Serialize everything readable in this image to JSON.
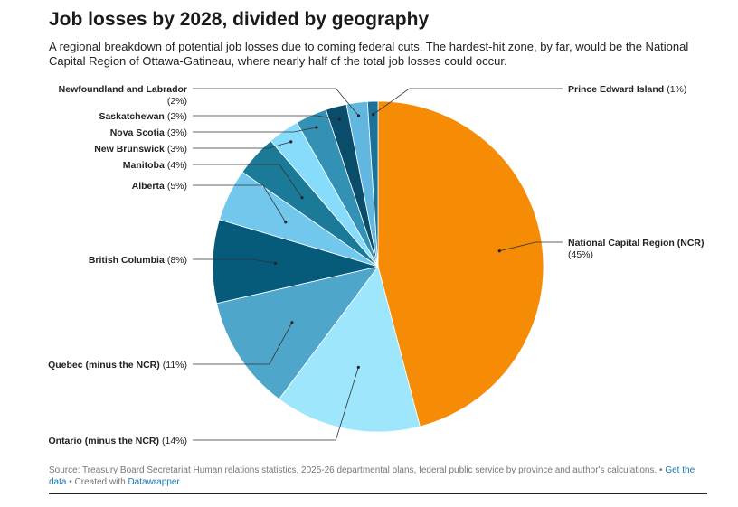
{
  "title": "Job losses by 2028, divided by geography",
  "subtitle": "A regional breakdown of potential job losses due to coming federal cuts. The hardest-hit zone, by far, would be the National Capital Region of Ottawa-Gatineau, where nearly half of the total job losses could occur.",
  "footer": {
    "source_text": "Source: Treasury Board Secretariat Human relations statistics, 2025-26 departmental plans, federal public service by province and author's calculations.",
    "separator": "•",
    "get_data_label": "Get the data",
    "created_with_text": "• Created with",
    "datawrapper_label": "Datawrapper"
  },
  "chart_data": {
    "type": "pie",
    "title": "Job losses by 2028, divided by geography",
    "slices": [
      {
        "label": "National Capital Region (NCR)",
        "pct_text": "(45%)",
        "value": 45,
        "color": "#f68b06"
      },
      {
        "label": "Ontario (minus the NCR)",
        "pct_text": "(14%)",
        "value": 14,
        "color": "#9ee6fc"
      },
      {
        "label": "Quebec (minus the NCR)",
        "pct_text": "(11%)",
        "value": 11,
        "color": "#4ea6cb"
      },
      {
        "label": "British Columbia",
        "pct_text": "(8%)",
        "value": 8,
        "color": "#065b7b"
      },
      {
        "label": "Alberta",
        "pct_text": "(5%)",
        "value": 5,
        "color": "#72c7ec"
      },
      {
        "label": "Manitoba",
        "pct_text": "(4%)",
        "value": 4,
        "color": "#1c7a99"
      },
      {
        "label": "New Brunswick",
        "pct_text": "(3%)",
        "value": 3,
        "color": "#88dcfb"
      },
      {
        "label": "Nova Scotia",
        "pct_text": "(3%)",
        "value": 3,
        "color": "#3491b6"
      },
      {
        "label": "Saskatchewan",
        "pct_text": "(2%)",
        "value": 2,
        "color": "#0a4d6b"
      },
      {
        "label": "Newfoundland and Labrador",
        "pct_text": "(2%)",
        "value": 2,
        "color": "#62b7e0"
      },
      {
        "label": "Prince Edward Island",
        "pct_text": "(1%)",
        "value": 1,
        "color": "#18729a"
      }
    ]
  }
}
